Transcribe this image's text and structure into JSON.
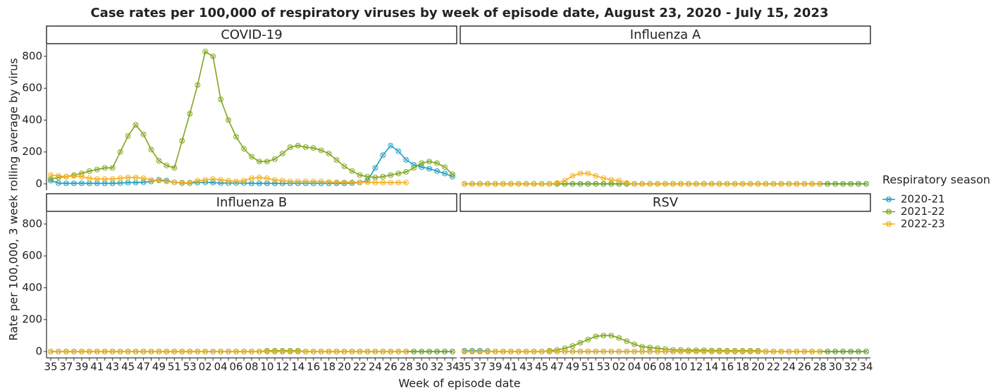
{
  "chart_data": {
    "type": "line",
    "title": "Case rates per 100,000 of respiratory viruses by week of episode date, August 23, 2020 - July 15, 2023",
    "x_label": "Week of episode date",
    "y_label": "Rate per 100,000, 3 week rolling average by virus",
    "legend_title": "Respiratory season",
    "categories": [
      "35",
      null,
      "37",
      null,
      "39",
      null,
      "41",
      null,
      "43",
      null,
      "45",
      null,
      "47",
      null,
      "49",
      null,
      "51",
      null,
      "53",
      null,
      "02",
      null,
      "04",
      null,
      "06",
      null,
      "08",
      null,
      "10",
      null,
      "12",
      null,
      "14",
      null,
      "16",
      null,
      "18",
      null,
      "20",
      null,
      "22",
      null,
      "24",
      null,
      "26",
      null,
      "28",
      null,
      "30",
      null,
      "32",
      null,
      "34"
    ],
    "ylim": [
      -40,
      875
    ],
    "yticks": [
      0,
      200,
      400,
      600,
      800
    ],
    "series": [
      {
        "name": "2020-21",
        "color": "#1f9fbf"
      },
      {
        "name": "2021-22",
        "color": "#7fa61c"
      },
      {
        "name": "2022-23",
        "color": "#f5b01f"
      }
    ],
    "facets": [
      {
        "title": "COVID-19",
        "values": [
          [
            20,
            5,
            3,
            3,
            3,
            3,
            3,
            3,
            3,
            5,
            8,
            8,
            10,
            15,
            25,
            20,
            10,
            5,
            5,
            8,
            10,
            8,
            5,
            5,
            5,
            5,
            3,
            3,
            3,
            3,
            3,
            3,
            3,
            3,
            3,
            3,
            3,
            3,
            3,
            5,
            8,
            20,
            100,
            180,
            240,
            205,
            150,
            120,
            105,
            95,
            80,
            65,
            45
          ],
          [
            30,
            40,
            45,
            55,
            65,
            80,
            90,
            100,
            100,
            200,
            300,
            370,
            310,
            215,
            145,
            115,
            100,
            270,
            440,
            620,
            830,
            800,
            530,
            400,
            295,
            220,
            170,
            140,
            140,
            155,
            190,
            230,
            240,
            230,
            225,
            210,
            190,
            150,
            110,
            80,
            55,
            45,
            40,
            45,
            55,
            65,
            75,
            100,
            130,
            140,
            130,
            105,
            60
          ],
          [
            55,
            50,
            45,
            50,
            45,
            35,
            30,
            30,
            30,
            35,
            40,
            40,
            35,
            25,
            20,
            15,
            10,
            8,
            8,
            20,
            25,
            30,
            25,
            20,
            15,
            20,
            35,
            40,
            35,
            25,
            20,
            15,
            15,
            15,
            15,
            15,
            12,
            10,
            10,
            10,
            10,
            10,
            8,
            8,
            8,
            8,
            8,
            null,
            null,
            null,
            null,
            null,
            null
          ]
        ]
      },
      {
        "title": "Influenza A",
        "values": [
          [
            0,
            0,
            0,
            0,
            0,
            0,
            0,
            0,
            0,
            0,
            0,
            0,
            0,
            0,
            0,
            0,
            0,
            0,
            0,
            0,
            0,
            0,
            0,
            0,
            0,
            0,
            0,
            0,
            0,
            0,
            0,
            0,
            0,
            0,
            0,
            0,
            0,
            0,
            0,
            0,
            0,
            0,
            0,
            0,
            0,
            0,
            0,
            0,
            0,
            0,
            0,
            0,
            0
          ],
          [
            0,
            0,
            0,
            0,
            0,
            0,
            0,
            0,
            0,
            0,
            0,
            0,
            0,
            0,
            0,
            0,
            0,
            0,
            0,
            0,
            0,
            0,
            0,
            0,
            0,
            0,
            0,
            0,
            0,
            0,
            0,
            0,
            0,
            0,
            0,
            0,
            0,
            0,
            0,
            0,
            0,
            0,
            0,
            0,
            0,
            0,
            0,
            0,
            0,
            0,
            0,
            0,
            0
          ],
          [
            0,
            0,
            0,
            0,
            0,
            0,
            0,
            0,
            0,
            0,
            0,
            0,
            5,
            20,
            50,
            65,
            65,
            50,
            35,
            25,
            20,
            5,
            0,
            0,
            0,
            0,
            0,
            0,
            0,
            0,
            0,
            0,
            0,
            0,
            0,
            0,
            0,
            0,
            0,
            0,
            0,
            0,
            0,
            0,
            0,
            0,
            0,
            null,
            null,
            null,
            null,
            null,
            null
          ]
        ]
      },
      {
        "title": "Influenza B",
        "values": [
          [
            0,
            0,
            0,
            0,
            0,
            0,
            0,
            0,
            0,
            0,
            0,
            0,
            0,
            0,
            0,
            0,
            0,
            0,
            0,
            0,
            0,
            0,
            0,
            0,
            0,
            0,
            0,
            0,
            0,
            0,
            0,
            0,
            0,
            0,
            0,
            0,
            0,
            0,
            0,
            0,
            0,
            0,
            0,
            0,
            0,
            0,
            0,
            0,
            0,
            0,
            0,
            0,
            0
          ],
          [
            0,
            0,
            0,
            0,
            0,
            0,
            0,
            0,
            0,
            0,
            0,
            0,
            0,
            0,
            0,
            0,
            0,
            0,
            0,
            0,
            0,
            0,
            0,
            0,
            0,
            0,
            0,
            0,
            5,
            5,
            5,
            5,
            5,
            0,
            0,
            0,
            0,
            0,
            0,
            0,
            0,
            0,
            0,
            0,
            0,
            0,
            0,
            0,
            0,
            0,
            0,
            0,
            0
          ],
          [
            0,
            0,
            0,
            0,
            0,
            0,
            0,
            0,
            0,
            0,
            0,
            0,
            0,
            0,
            0,
            0,
            0,
            0,
            0,
            0,
            0,
            0,
            0,
            0,
            0,
            0,
            0,
            0,
            0,
            0,
            0,
            0,
            0,
            0,
            0,
            0,
            0,
            0,
            0,
            0,
            0,
            0,
            0,
            0,
            0,
            0,
            0,
            null,
            null,
            null,
            null,
            null,
            null
          ]
        ]
      },
      {
        "title": "RSV",
        "values": [
          [
            5,
            5,
            5,
            3,
            0,
            0,
            0,
            0,
            0,
            0,
            0,
            0,
            0,
            0,
            0,
            0,
            0,
            0,
            0,
            0,
            0,
            0,
            0,
            0,
            0,
            0,
            0,
            0,
            0,
            0,
            0,
            0,
            0,
            0,
            0,
            0,
            0,
            0,
            0,
            0,
            0,
            0,
            0,
            0,
            0,
            0,
            0,
            0,
            0,
            0,
            0,
            0,
            0
          ],
          [
            0,
            0,
            0,
            0,
            0,
            0,
            0,
            0,
            0,
            0,
            0,
            5,
            10,
            20,
            35,
            55,
            75,
            95,
            100,
            100,
            85,
            65,
            45,
            30,
            25,
            20,
            15,
            10,
            10,
            8,
            8,
            8,
            6,
            6,
            5,
            5,
            5,
            5,
            5,
            0,
            0,
            0,
            0,
            0,
            0,
            0,
            0,
            0,
            0,
            0,
            0,
            0,
            0
          ],
          [
            0,
            0,
            0,
            0,
            0,
            0,
            0,
            0,
            0,
            0,
            0,
            0,
            0,
            0,
            0,
            0,
            0,
            0,
            0,
            0,
            0,
            0,
            0,
            0,
            0,
            0,
            0,
            0,
            0,
            0,
            0,
            0,
            0,
            0,
            0,
            0,
            0,
            0,
            0,
            0,
            0,
            0,
            0,
            0,
            0,
            0,
            0,
            null,
            null,
            null,
            null,
            null,
            null
          ]
        ]
      }
    ]
  }
}
